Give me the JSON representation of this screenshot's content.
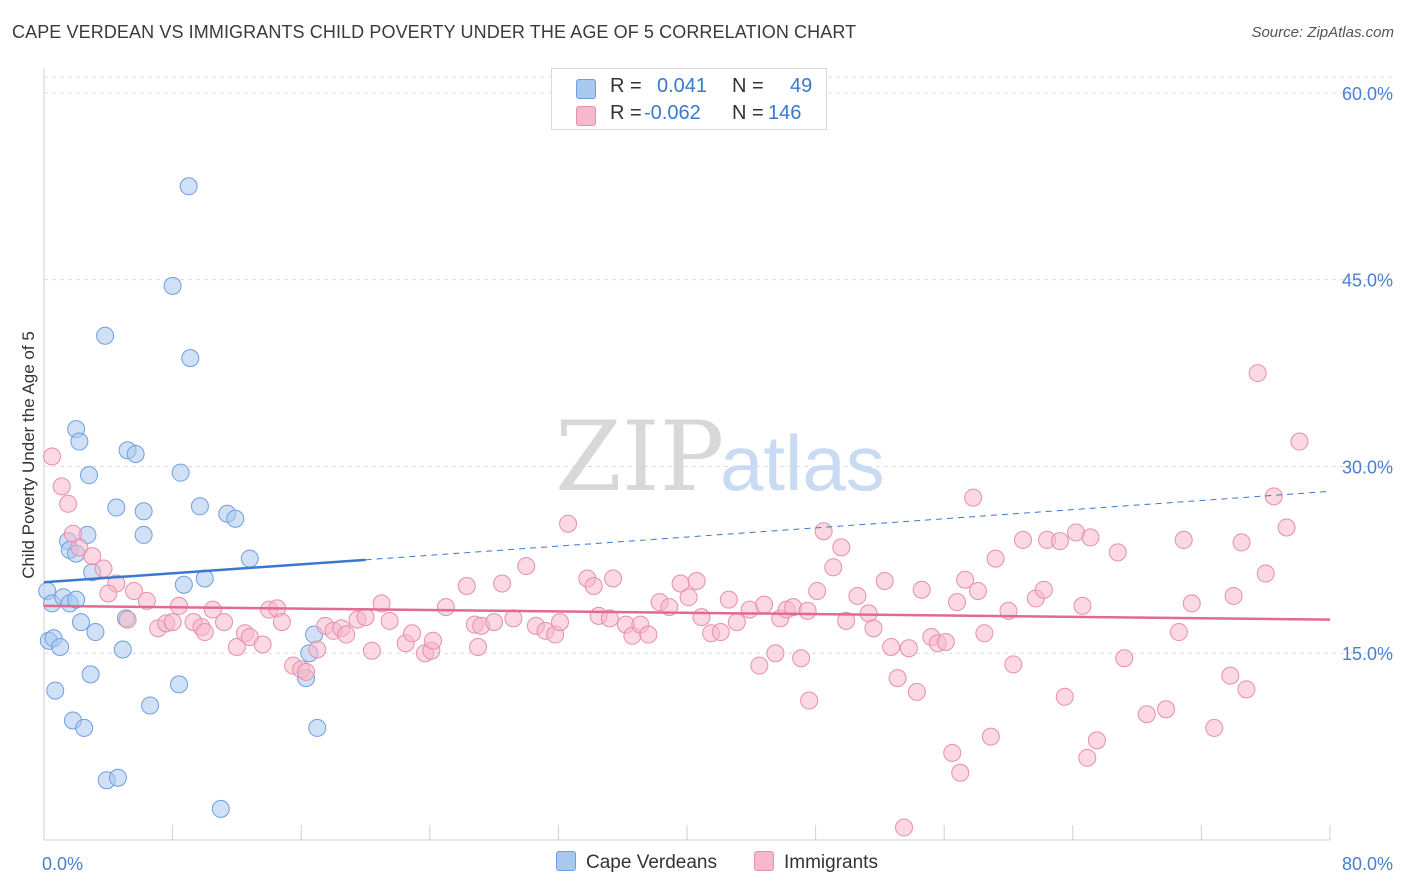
{
  "title": "CAPE VERDEAN VS IMMIGRANTS CHILD POVERTY UNDER THE AGE OF 5 CORRELATION CHART",
  "source": "Source: ZipAtlas.com",
  "watermark": {
    "zip": "ZIP",
    "atlas": "atlas"
  },
  "legend_top": {
    "rows": [
      {
        "r_label": "R =",
        "r_value": "0.041",
        "n_label": "N =",
        "n_value": "49",
        "color": "#a9c8f0"
      },
      {
        "r_label": "R =",
        "r_value": "-0.062",
        "n_label": "N =",
        "n_value": "146",
        "color": "#f7b8cb"
      }
    ]
  },
  "legend_bottom": [
    {
      "label": "Cape Verdeans",
      "color": "#a9c8f0"
    },
    {
      "label": "Immigrants",
      "color": "#f7b8cb"
    }
  ],
  "chart_data": {
    "type": "scatter",
    "ylabel": "Child Poverty Under the Age of 5",
    "xlim": [
      0,
      80
    ],
    "ylim": [
      0,
      62
    ],
    "x_tick_labels": [
      "0.0%",
      "80.0%"
    ],
    "y_ticks": [
      {
        "value": 15,
        "label": "15.0%"
      },
      {
        "value": 30,
        "label": "30.0%"
      },
      {
        "value": 45,
        "label": "45.0%"
      },
      {
        "value": 60,
        "label": "60.0%"
      }
    ],
    "grid": true,
    "series": [
      {
        "name": "Cape Verdeans",
        "color": "#a9c8f0",
        "stroke": "#6f9ee0",
        "trend": {
          "x0": 0,
          "y0": 20.7,
          "x1": 20,
          "y1": 22.5,
          "x_ext": 80,
          "y_ext": 28.0,
          "color": "#3a78d0"
        },
        "points": [
          [
            0.2,
            20.0
          ],
          [
            0.5,
            19.0
          ],
          [
            0.3,
            16.0
          ],
          [
            0.6,
            16.2
          ],
          [
            1.0,
            15.5
          ],
          [
            0.7,
            12.0
          ],
          [
            1.2,
            19.5
          ],
          [
            1.6,
            19.0
          ],
          [
            2.0,
            19.3
          ],
          [
            1.5,
            24.0
          ],
          [
            1.6,
            23.3
          ],
          [
            2.0,
            23.0
          ],
          [
            2.7,
            24.5
          ],
          [
            2.3,
            17.5
          ],
          [
            2.0,
            33.0
          ],
          [
            2.2,
            32.0
          ],
          [
            2.8,
            29.3
          ],
          [
            3.2,
            16.7
          ],
          [
            3.0,
            21.5
          ],
          [
            2.9,
            13.3
          ],
          [
            1.8,
            9.6
          ],
          [
            2.5,
            9.0
          ],
          [
            3.9,
            4.8
          ],
          [
            4.6,
            5.0
          ],
          [
            4.5,
            26.7
          ],
          [
            3.8,
            40.5
          ],
          [
            4.9,
            15.3
          ],
          [
            5.1,
            17.8
          ],
          [
            5.2,
            31.3
          ],
          [
            5.7,
            31.0
          ],
          [
            6.2,
            24.5
          ],
          [
            6.2,
            26.4
          ],
          [
            6.6,
            10.8
          ],
          [
            8.0,
            44.5
          ],
          [
            8.5,
            29.5
          ],
          [
            8.4,
            12.5
          ],
          [
            8.7,
            20.5
          ],
          [
            9.0,
            52.5
          ],
          [
            9.1,
            38.7
          ],
          [
            9.7,
            26.8
          ],
          [
            10.0,
            21.0
          ],
          [
            11.4,
            26.2
          ],
          [
            11.9,
            25.8
          ],
          [
            12.8,
            22.6
          ],
          [
            11.0,
            2.5
          ],
          [
            16.5,
            15.0
          ],
          [
            16.3,
            13.0
          ],
          [
            16.8,
            16.5
          ],
          [
            17.0,
            9.0
          ]
        ]
      },
      {
        "name": "Immigrants",
        "color": "#f7b8cb",
        "stroke": "#e58fac",
        "trend": {
          "x0": 0,
          "y0": 18.8,
          "x1": 80,
          "y1": 17.7,
          "color": "#e06a93"
        },
        "points": [
          [
            0.5,
            30.8
          ],
          [
            1.1,
            28.4
          ],
          [
            1.5,
            27.0
          ],
          [
            1.8,
            24.6
          ],
          [
            2.2,
            23.5
          ],
          [
            3.0,
            22.8
          ],
          [
            3.7,
            21.8
          ],
          [
            4.5,
            20.6
          ],
          [
            4.0,
            19.8
          ],
          [
            5.2,
            17.7
          ],
          [
            5.6,
            20.0
          ],
          [
            6.4,
            19.2
          ],
          [
            7.1,
            17.0
          ],
          [
            7.6,
            17.4
          ],
          [
            8.0,
            17.5
          ],
          [
            8.4,
            18.8
          ],
          [
            9.3,
            17.5
          ],
          [
            9.8,
            17.1
          ],
          [
            10.0,
            16.7
          ],
          [
            10.5,
            18.5
          ],
          [
            11.2,
            17.5
          ],
          [
            12.0,
            15.5
          ],
          [
            12.5,
            16.6
          ],
          [
            12.8,
            16.3
          ],
          [
            13.6,
            15.7
          ],
          [
            14.0,
            18.5
          ],
          [
            14.5,
            18.6
          ],
          [
            14.8,
            17.5
          ],
          [
            15.5,
            14.0
          ],
          [
            16.0,
            13.7
          ],
          [
            16.3,
            13.5
          ],
          [
            17.0,
            15.3
          ],
          [
            17.5,
            17.2
          ],
          [
            18.0,
            16.8
          ],
          [
            18.5,
            17.0
          ],
          [
            18.8,
            16.5
          ],
          [
            19.5,
            17.7
          ],
          [
            20.0,
            17.9
          ],
          [
            20.4,
            15.2
          ],
          [
            21.0,
            19.0
          ],
          [
            21.5,
            17.6
          ],
          [
            22.5,
            15.8
          ],
          [
            22.9,
            16.6
          ],
          [
            23.7,
            15.0
          ],
          [
            24.1,
            15.2
          ],
          [
            24.2,
            16.0
          ],
          [
            25.0,
            18.7
          ],
          [
            26.3,
            20.4
          ],
          [
            26.8,
            17.3
          ],
          [
            27.0,
            15.5
          ],
          [
            27.2,
            17.2
          ],
          [
            28.0,
            17.5
          ],
          [
            28.5,
            20.6
          ],
          [
            29.2,
            17.8
          ],
          [
            30.0,
            22.0
          ],
          [
            30.6,
            17.2
          ],
          [
            31.2,
            16.8
          ],
          [
            31.8,
            16.5
          ],
          [
            32.1,
            17.5
          ],
          [
            32.6,
            25.4
          ],
          [
            33.8,
            21.0
          ],
          [
            34.2,
            20.4
          ],
          [
            34.5,
            18.0
          ],
          [
            35.2,
            17.8
          ],
          [
            35.4,
            21.0
          ],
          [
            36.2,
            17.3
          ],
          [
            36.6,
            16.4
          ],
          [
            37.1,
            17.3
          ],
          [
            37.6,
            16.5
          ],
          [
            38.3,
            19.1
          ],
          [
            38.9,
            18.7
          ],
          [
            39.6,
            20.6
          ],
          [
            40.1,
            19.5
          ],
          [
            40.6,
            20.8
          ],
          [
            40.9,
            17.9
          ],
          [
            41.5,
            16.6
          ],
          [
            42.1,
            16.7
          ],
          [
            42.6,
            19.3
          ],
          [
            43.1,
            17.5
          ],
          [
            43.9,
            18.5
          ],
          [
            44.5,
            14.0
          ],
          [
            44.8,
            18.9
          ],
          [
            45.5,
            15.0
          ],
          [
            45.8,
            17.8
          ],
          [
            46.2,
            18.5
          ],
          [
            46.6,
            18.7
          ],
          [
            47.1,
            14.6
          ],
          [
            47.5,
            18.4
          ],
          [
            48.1,
            20.0
          ],
          [
            48.5,
            24.8
          ],
          [
            49.1,
            21.9
          ],
          [
            49.6,
            23.5
          ],
          [
            49.9,
            17.6
          ],
          [
            50.6,
            19.6
          ],
          [
            51.3,
            18.2
          ],
          [
            51.6,
            17.0
          ],
          [
            52.3,
            20.8
          ],
          [
            52.7,
            15.5
          ],
          [
            53.1,
            13.0
          ],
          [
            53.8,
            15.4
          ],
          [
            54.3,
            11.9
          ],
          [
            54.6,
            20.1
          ],
          [
            55.2,
            16.3
          ],
          [
            55.6,
            15.8
          ],
          [
            56.1,
            15.9
          ],
          [
            56.8,
            19.1
          ],
          [
            57.3,
            20.9
          ],
          [
            57.8,
            27.5
          ],
          [
            58.1,
            20.0
          ],
          [
            58.5,
            16.6
          ],
          [
            58.9,
            8.3
          ],
          [
            59.2,
            22.6
          ],
          [
            60.0,
            18.4
          ],
          [
            60.3,
            14.1
          ],
          [
            60.9,
            24.1
          ],
          [
            61.7,
            19.4
          ],
          [
            62.2,
            20.1
          ],
          [
            62.4,
            24.1
          ],
          [
            63.2,
            24.0
          ],
          [
            64.2,
            24.7
          ],
          [
            64.6,
            18.8
          ],
          [
            64.9,
            6.6
          ],
          [
            65.1,
            24.3
          ],
          [
            65.5,
            8.0
          ],
          [
            66.8,
            23.1
          ],
          [
            67.2,
            14.6
          ],
          [
            68.6,
            10.1
          ],
          [
            69.8,
            10.5
          ],
          [
            70.6,
            16.7
          ],
          [
            70.9,
            24.1
          ],
          [
            71.4,
            19.0
          ],
          [
            72.8,
            9.0
          ],
          [
            74.0,
            19.6
          ],
          [
            74.5,
            23.9
          ],
          [
            74.8,
            12.1
          ],
          [
            75.5,
            37.5
          ],
          [
            76.0,
            21.4
          ],
          [
            76.5,
            27.6
          ],
          [
            77.3,
            25.1
          ],
          [
            78.1,
            32.0
          ],
          [
            73.8,
            13.2
          ],
          [
            53.5,
            1.0
          ],
          [
            56.5,
            7.0
          ],
          [
            57.0,
            5.4
          ],
          [
            63.5,
            11.5
          ],
          [
            47.6,
            11.2
          ]
        ]
      }
    ]
  }
}
